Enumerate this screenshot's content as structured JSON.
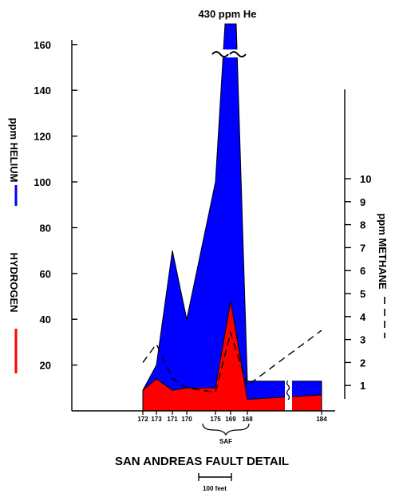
{
  "chart_data": {
    "type": "area",
    "title": "SAN ANDREAS FAULT DETAIL",
    "peak_annotation": "430 ppm He",
    "left_axis": {
      "label_helium": "ppm HELIUM",
      "label_hydrogen": "HYDROGEN",
      "ylim": [
        0,
        170
      ],
      "ticks": [
        "20",
        "40",
        "60",
        "80",
        "100",
        "120",
        "140",
        "160"
      ]
    },
    "right_axis": {
      "label": "ppm METHANE",
      "ylim": [
        0,
        14
      ],
      "ticks": [
        "1",
        "2",
        "3",
        "4",
        "5",
        "6",
        "7",
        "8",
        "9",
        "10"
      ]
    },
    "x_axis": {
      "ticks": [
        "172",
        "173",
        "171",
        "170",
        "175",
        "169",
        "168",
        "184"
      ]
    },
    "fault_label": "SAF",
    "scale_bar_label": "100 feet",
    "series": [
      {
        "name": "HELIUM",
        "color": "#0000ff",
        "values": [
          {
            "s": 172,
            "v": 9
          },
          {
            "s": 173,
            "v": 20
          },
          {
            "s": 171,
            "v": 70
          },
          {
            "s": 170,
            "v": 40
          },
          {
            "s": 175,
            "v": 100
          },
          {
            "s": 169,
            "v": 430
          },
          {
            "s": 168,
            "v": 13
          },
          {
            "s": 184,
            "v": 13
          }
        ]
      },
      {
        "name": "HYDROGEN",
        "color": "#ff0000",
        "values": [
          {
            "s": 172,
            "v": 9
          },
          {
            "s": 173,
            "v": 14
          },
          {
            "s": 171,
            "v": 9
          },
          {
            "s": 170,
            "v": 10
          },
          {
            "s": 175,
            "v": 10
          },
          {
            "s": 169,
            "v": 48
          },
          {
            "s": 168,
            "v": 5
          },
          {
            "s": 184,
            "v": 7
          }
        ]
      },
      {
        "name": "METHANE",
        "color": "#000000",
        "style": "dashed",
        "values": [
          {
            "s": 172,
            "v": 2
          },
          {
            "s": 173,
            "v": 2.8
          },
          {
            "s": 171,
            "v": 1.3
          },
          {
            "s": 170,
            "v": 0.9
          },
          {
            "s": 175,
            "v": 0.7
          },
          {
            "s": 169,
            "v": 3.3
          },
          {
            "s": 168,
            "v": 1
          },
          {
            "s": 184,
            "v": 3.4
          }
        ]
      }
    ]
  }
}
